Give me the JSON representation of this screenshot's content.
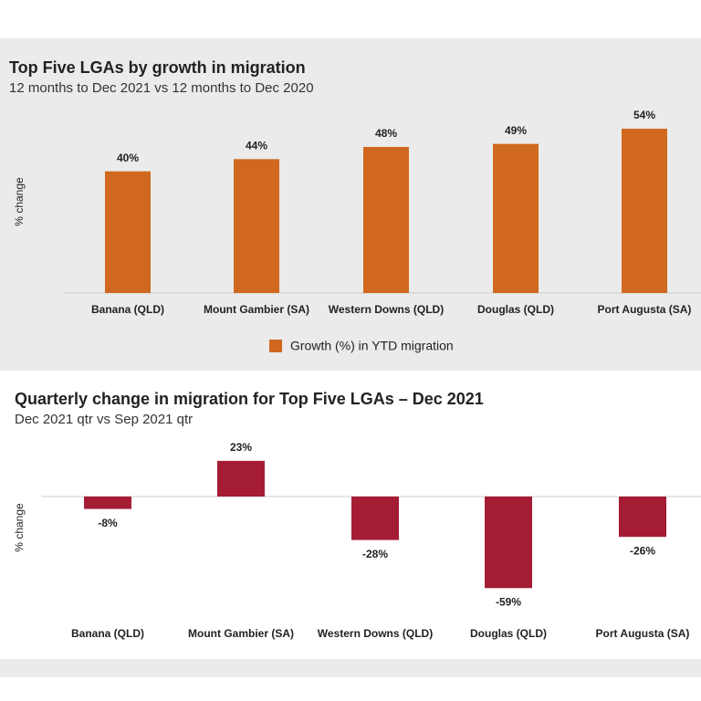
{
  "chart_data": [
    {
      "type": "bar",
      "title": "Top Five LGAs by growth in migration",
      "subtitle": "12 months to Dec 2021 vs 12 months to Dec 2020",
      "y_label": "% change",
      "categories": [
        "Banana (QLD)",
        "Mount Gambier (SA)",
        "Western Downs (QLD)",
        "Douglas (QLD)",
        "Port Augusta (SA)"
      ],
      "series": [
        {
          "name": "Growth (%) in YTD migration",
          "color": "#d0691f",
          "values": [
            40,
            44,
            48,
            49,
            54
          ],
          "value_labels": [
            "40%",
            "44%",
            "48%",
            "49%",
            "54%"
          ]
        }
      ],
      "ylim": [
        0,
        60
      ],
      "legend": "bottom"
    },
    {
      "type": "bar",
      "title": "Quarterly change in migration for Top Five LGAs – Dec 2021",
      "subtitle": "Dec 2021 qtr vs Sep 2021 qtr",
      "y_label": "% change",
      "categories": [
        "Banana (QLD)",
        "Mount Gambier (SA)",
        "Western Downs (QLD)",
        "Douglas (QLD)",
        "Port Augusta (SA)"
      ],
      "values": [
        -8,
        23,
        -28,
        -59,
        -26
      ],
      "value_labels": [
        "-8%",
        "23%",
        "-28%",
        "-59%",
        "-26%"
      ],
      "color": "#a51c35",
      "ylim": [
        -70,
        30
      ]
    }
  ]
}
